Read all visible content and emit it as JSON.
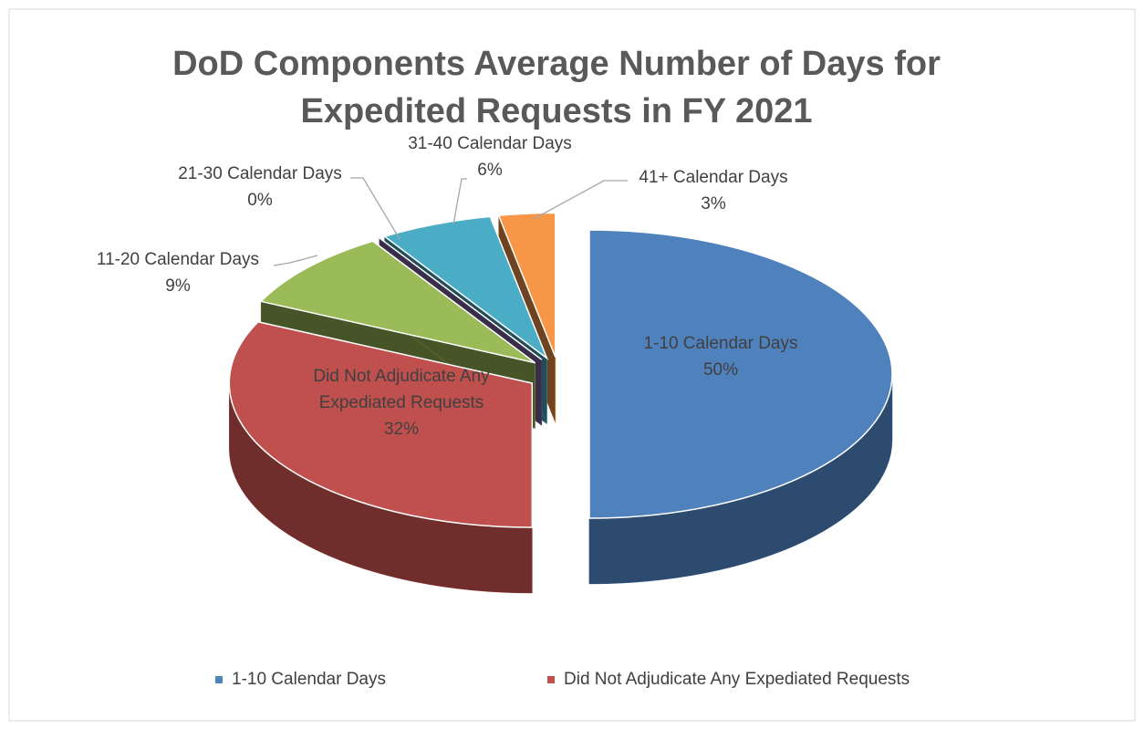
{
  "chart_data": {
    "type": "pie",
    "title": "DoD Components Average Number of Days for Expedited Requests in FY 2021",
    "categories": [
      "1-10 Calendar Days",
      "Did Not Adjudicate Any Expediated Requests",
      "11-20 Calendar Days",
      "21-30 Calendar Days",
      "31-40 Calendar Days",
      "41+ Calendar Days"
    ],
    "values": [
      50,
      32,
      9,
      0,
      6,
      3
    ],
    "value_labels": [
      "50%",
      "32%",
      "9%",
      "0%",
      "6%",
      "3%"
    ],
    "colors": [
      "#4f81bd",
      "#c0504d",
      "#9bbb59",
      "#8064a2",
      "#4bacc6",
      "#f79646"
    ],
    "legend": "bottom"
  }
}
